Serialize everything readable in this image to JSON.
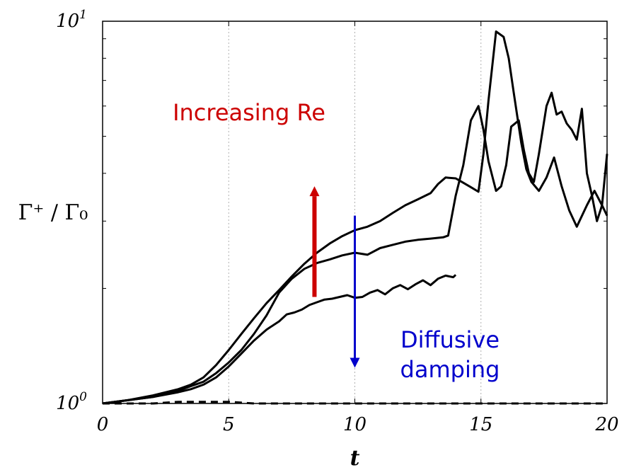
{
  "chart_data": {
    "type": "line",
    "title": "",
    "xlabel": "t",
    "ylabel": "Γ⁺ / Γ₀",
    "xlim": [
      0,
      20
    ],
    "ylim": [
      1,
      10
    ],
    "yscale": "log",
    "grid": "vertical dotted",
    "x_ticks": [
      "0",
      "5",
      "10",
      "15",
      "20"
    ],
    "y_ticks": [
      {
        "mantissa": "10",
        "exponent": "0"
      },
      {
        "mantissa": "10",
        "exponent": "1"
      }
    ],
    "series": [
      {
        "style": "solid",
        "color": "#000000",
        "x": [
          0,
          1,
          2,
          3,
          3.5,
          4,
          4.5,
          5,
          5.5,
          6,
          6.5,
          7,
          7.5,
          8,
          8.5,
          9,
          9.5,
          10,
          10.5,
          11,
          11.5,
          12,
          12.5,
          13,
          13.3,
          13.6,
          14,
          14.3,
          14.6,
          14.9,
          15.1,
          15.3,
          15.6,
          15.9,
          16.1,
          16.3,
          16.6,
          16.8,
          17,
          17.3,
          17.6,
          17.9,
          18.2,
          18.5,
          18.8,
          19.2,
          19.5,
          19.8,
          20
        ],
        "y": [
          1.0,
          1.02,
          1.05,
          1.09,
          1.12,
          1.17,
          1.26,
          1.38,
          1.52,
          1.67,
          1.83,
          1.98,
          2.15,
          2.32,
          2.48,
          2.62,
          2.74,
          2.84,
          2.9,
          3.0,
          3.15,
          3.3,
          3.42,
          3.55,
          3.75,
          3.9,
          3.88,
          3.78,
          3.68,
          3.58,
          4.5,
          6.2,
          9.4,
          9.1,
          8.0,
          6.5,
          4.8,
          4.1,
          3.8,
          3.6,
          3.9,
          4.4,
          3.7,
          3.2,
          2.9,
          3.3,
          3.6,
          3.3,
          3.1
        ]
      },
      {
        "style": "solid",
        "color": "#000000",
        "x": [
          0,
          1,
          2,
          3,
          3.5,
          4,
          4.5,
          5,
          5.5,
          6,
          6.5,
          7,
          7.5,
          8,
          8.5,
          9,
          9.5,
          10,
          10.5,
          11,
          11.5,
          12,
          12.5,
          13,
          13.5,
          13.7,
          14,
          14.3,
          14.6,
          14.9,
          15.1,
          15.3,
          15.6,
          15.8,
          16.0,
          16.2,
          16.5,
          16.7,
          16.9,
          17.1,
          17.3,
          17.6,
          17.8,
          18,
          18.2,
          18.4,
          18.6,
          18.8,
          19,
          19.2,
          19.4,
          19.6,
          19.8,
          20
        ],
        "y": [
          1.0,
          1.02,
          1.04,
          1.08,
          1.11,
          1.14,
          1.2,
          1.28,
          1.38,
          1.52,
          1.7,
          1.95,
          2.12,
          2.25,
          2.33,
          2.38,
          2.44,
          2.48,
          2.45,
          2.55,
          2.6,
          2.65,
          2.68,
          2.7,
          2.72,
          2.75,
          3.5,
          4.2,
          5.5,
          6.0,
          5.2,
          4.3,
          3.6,
          3.7,
          4.2,
          5.3,
          5.5,
          4.6,
          4.0,
          3.8,
          4.5,
          6.0,
          6.5,
          5.7,
          5.8,
          5.4,
          5.2,
          4.9,
          5.9,
          4.0,
          3.5,
          3.0,
          3.3,
          4.5
        ]
      },
      {
        "style": "solid",
        "color": "#000000",
        "x": [
          0,
          1,
          2,
          3,
          3.5,
          4,
          4.5,
          5,
          5.5,
          6,
          6.5,
          7,
          7.3,
          7.6,
          7.9,
          8.2,
          8.5,
          8.8,
          9.1,
          9.4,
          9.7,
          10.0,
          10.3,
          10.6,
          10.9,
          11.2,
          11.5,
          11.8,
          12.1,
          12.4,
          12.7,
          13.0,
          13.3,
          13.6,
          13.9,
          14.0
        ],
        "y": [
          1.0,
          1.02,
          1.04,
          1.07,
          1.09,
          1.12,
          1.17,
          1.25,
          1.35,
          1.46,
          1.56,
          1.64,
          1.71,
          1.73,
          1.76,
          1.81,
          1.84,
          1.87,
          1.88,
          1.9,
          1.92,
          1.89,
          1.9,
          1.95,
          1.98,
          1.93,
          2.0,
          2.04,
          1.99,
          2.05,
          2.1,
          2.04,
          2.12,
          2.16,
          2.14,
          2.17
        ]
      },
      {
        "style": "dashed",
        "color": "#000000",
        "x": [
          0,
          1,
          2,
          3,
          4,
          5,
          6,
          7,
          8,
          9,
          10,
          11,
          12,
          13,
          14,
          15,
          16,
          17,
          18,
          19,
          20
        ],
        "y": [
          1.0,
          1.0,
          1.0,
          1.01,
          1.01,
          1.01,
          1.0,
          1.0,
          1.0,
          1.0,
          1.0,
          1.0,
          1.0,
          1.0,
          1.0,
          1.0,
          1.0,
          1.0,
          1.0,
          1.0,
          1.0
        ]
      }
    ],
    "annotations": [
      {
        "text": "Increasing Re",
        "color": "#cc0000",
        "arrow": "up",
        "arrow_x": 8.4,
        "arrow_from": 1.9,
        "arrow_to": 3.7
      },
      {
        "text": "Diffusive damping",
        "text_lines": [
          "Diffusive",
          "damping"
        ],
        "color": "#0000cc",
        "arrow": "down",
        "arrow_x": 10.0,
        "arrow_from": 3.1,
        "arrow_to": 1.24
      }
    ]
  }
}
